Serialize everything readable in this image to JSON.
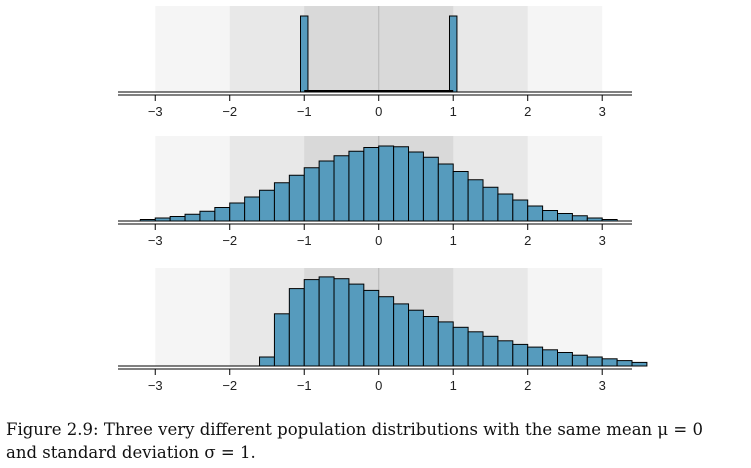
{
  "caption": {
    "line1": "Figure 2.9: Three very different population distributions with the same mean μ = 0",
    "line2": "and standard deviation σ = 1."
  },
  "colors": {
    "bar_fill": "#569bbd",
    "bar_stroke": "#000000",
    "band_far": "#f5f5f5",
    "band_mid": "#e8e8e8",
    "band_near": "#d9d9d9",
    "center_line": "#bbbbbb"
  },
  "chart_data": [
    {
      "type": "bar",
      "histogram": true,
      "x_range": [
        -3.5,
        3.4
      ],
      "xticks": [
        -3,
        -2,
        -1,
        0,
        1,
        2,
        3
      ],
      "xtick_labels": [
        "−3",
        "−2",
        "−1",
        "0",
        "1",
        "2",
        "3"
      ],
      "shaded_bands_sd": [
        1,
        2,
        3
      ],
      "bin_width": 0.1,
      "bins": [
        {
          "x0": -1.05,
          "x1": -0.95,
          "y": 1.0
        },
        {
          "x0": 0.95,
          "x1": 1.05,
          "y": 1.0
        }
      ],
      "baseline": {
        "x0": -1.0,
        "x1": 1.0
      },
      "y_max": 1.0,
      "title": "",
      "xlabel": "",
      "ylabel": ""
    },
    {
      "type": "bar",
      "histogram": true,
      "x_range": [
        -3.5,
        3.4
      ],
      "xticks": [
        -3,
        -2,
        -1,
        0,
        1,
        2,
        3
      ],
      "xtick_labels": [
        "−3",
        "−2",
        "−1",
        "0",
        "1",
        "2",
        "3"
      ],
      "shaded_bands_sd": [
        1,
        2,
        3
      ],
      "bin_start": -3.2,
      "bin_width": 0.2,
      "values": [
        0.02,
        0.04,
        0.06,
        0.09,
        0.13,
        0.18,
        0.24,
        0.32,
        0.41,
        0.51,
        0.61,
        0.71,
        0.8,
        0.87,
        0.93,
        0.98,
        1.0,
        0.99,
        0.92,
        0.85,
        0.76,
        0.66,
        0.55,
        0.45,
        0.36,
        0.28,
        0.2,
        0.14,
        0.1,
        0.07,
        0.04,
        0.02
      ],
      "y_max": 1.0,
      "title": "",
      "xlabel": "",
      "ylabel": ""
    },
    {
      "type": "bar",
      "histogram": true,
      "x_range": [
        -3.5,
        3.4
      ],
      "xticks": [
        -3,
        -2,
        -1,
        0,
        1,
        2,
        3
      ],
      "xtick_labels": [
        "−3",
        "−2",
        "−1",
        "0",
        "1",
        "2",
        "3"
      ],
      "shaded_bands_sd": [
        1,
        2,
        3
      ],
      "bin_start": -1.6,
      "bin_width": 0.2,
      "values": [
        0.1,
        0.58,
        0.86,
        0.96,
        0.99,
        0.97,
        0.91,
        0.84,
        0.77,
        0.69,
        0.62,
        0.55,
        0.49,
        0.43,
        0.38,
        0.33,
        0.28,
        0.24,
        0.21,
        0.18,
        0.15,
        0.12,
        0.1,
        0.08,
        0.06,
        0.04
      ],
      "y_max": 1.0,
      "title": "",
      "xlabel": "",
      "ylabel": ""
    }
  ]
}
